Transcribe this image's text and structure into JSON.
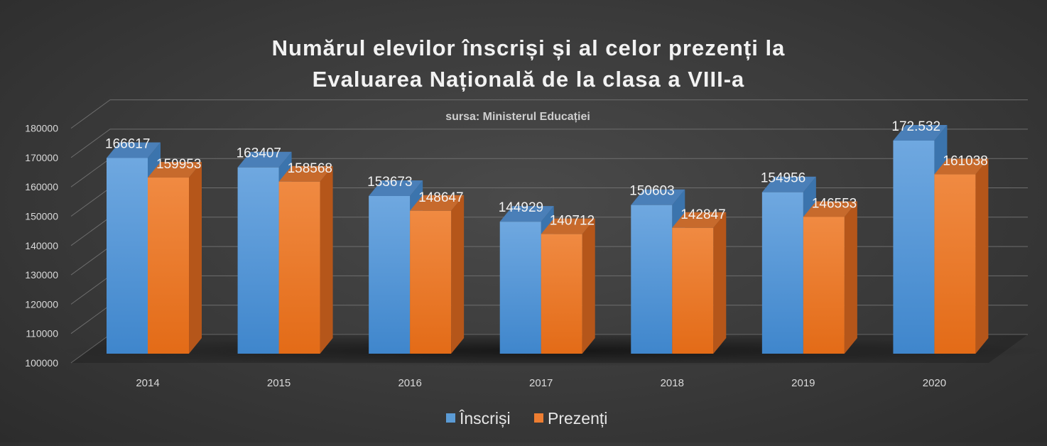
{
  "chart_data": {
    "type": "bar",
    "title_lines": [
      "Numărul elevilor înscriși și al celor prezenți la",
      "Evaluarea Națională de la clasa a VIII-a"
    ],
    "subtitle": "sursa: Ministerul Educației",
    "categories": [
      "2014",
      "2015",
      "2016",
      "2017",
      "2018",
      "2019",
      "2020"
    ],
    "series": [
      {
        "name": "Înscriși",
        "values": [
          166617,
          163407,
          153673,
          144929,
          150603,
          154956,
          172532
        ],
        "labels": [
          "166617",
          "163407",
          "153673",
          "144929",
          "150603",
          "154956",
          "172.532"
        ],
        "color": "#5b9bd5"
      },
      {
        "name": "Prezenți",
        "values": [
          159953,
          158568,
          148647,
          140712,
          142847,
          146553,
          161038
        ],
        "labels": [
          "159953",
          "158568",
          "148647",
          "140712",
          "142847",
          "146553",
          "161038"
        ],
        "color": "#ed7d31"
      }
    ],
    "yticks": [
      "100000",
      "110000",
      "120000",
      "130000",
      "140000",
      "150000",
      "160000",
      "170000",
      "180000"
    ],
    "ylim": [
      100000,
      180000
    ],
    "grid": true,
    "legend_position": "bottom",
    "style": "3d-column"
  }
}
